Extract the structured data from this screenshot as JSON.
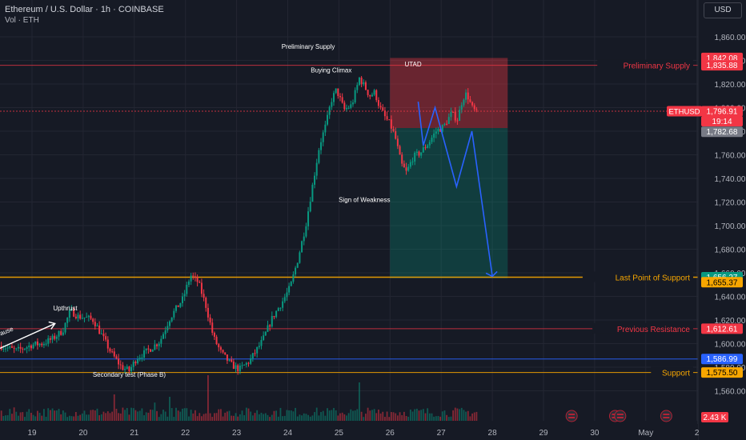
{
  "header": {
    "title": "Ethereum / U.S. Dollar · 1h · COINBASE",
    "volume_label": "Vol · ETH",
    "currency_button": "USD"
  },
  "chart_data": {
    "type": "candlestick",
    "symbol": "ETHUSD",
    "timeframe": "1h",
    "exchange": "COINBASE",
    "y_ticks": [
      1560,
      1580,
      1600,
      1620,
      1640,
      1660,
      1680,
      1700,
      1720,
      1740,
      1760,
      1780,
      1800,
      1820,
      1840,
      1860
    ],
    "y_tick_labels": [
      "1,560.00",
      "1,580.00",
      "1,600.00",
      "1,620.00",
      "1,640.00",
      "1,660.00",
      "1,680.00",
      "1,700.00",
      "1,720.00",
      "1,740.00",
      "1,760.00",
      "1,780.00",
      "1,800.00",
      "1,820.00",
      "1,840.00",
      "1,860.00"
    ],
    "ylim": [
      1542,
      1880
    ],
    "x_labels": [
      {
        "label": "19",
        "day": 19
      },
      {
        "label": "20",
        "day": 20
      },
      {
        "label": "21",
        "day": 21
      },
      {
        "label": "22",
        "day": 22
      },
      {
        "label": "23",
        "day": 23
      },
      {
        "label": "24",
        "day": 24
      },
      {
        "label": "25",
        "day": 25
      },
      {
        "label": "26",
        "day": 26
      },
      {
        "label": "27",
        "day": 27
      },
      {
        "label": "28",
        "day": 28
      },
      {
        "label": "29",
        "day": 29
      },
      {
        "label": "30",
        "day": 30
      },
      {
        "label": "May",
        "day": 31
      },
      {
        "label": "2",
        "day": 32
      }
    ],
    "price_path": [
      [
        18.4,
        1598
      ],
      [
        18.7,
        1594
      ],
      [
        19.0,
        1599
      ],
      [
        19.2,
        1600
      ],
      [
        19.4,
        1604
      ],
      [
        19.6,
        1611
      ],
      [
        19.75,
        1628
      ],
      [
        19.9,
        1623
      ],
      [
        20.05,
        1622
      ],
      [
        20.2,
        1620
      ],
      [
        20.4,
        1604
      ],
      [
        20.55,
        1592
      ],
      [
        20.75,
        1580
      ],
      [
        20.9,
        1577
      ],
      [
        21.05,
        1588
      ],
      [
        21.2,
        1592
      ],
      [
        21.5,
        1602
      ],
      [
        21.7,
        1622
      ],
      [
        21.95,
        1638
      ],
      [
        22.1,
        1658
      ],
      [
        22.25,
        1652
      ],
      [
        22.4,
        1632
      ],
      [
        22.55,
        1605
      ],
      [
        22.7,
        1592
      ],
      [
        22.9,
        1582
      ],
      [
        23.05,
        1578
      ],
      [
        23.25,
        1585
      ],
      [
        23.5,
        1602
      ],
      [
        23.7,
        1622
      ],
      [
        23.9,
        1636
      ],
      [
        24.05,
        1648
      ],
      [
        24.2,
        1672
      ],
      [
        24.35,
        1700
      ],
      [
        24.5,
        1738
      ],
      [
        24.62,
        1768
      ],
      [
        24.75,
        1786
      ],
      [
        24.85,
        1806
      ],
      [
        24.95,
        1815
      ],
      [
        25.0,
        1810
      ],
      [
        25.1,
        1798
      ],
      [
        25.25,
        1802
      ],
      [
        25.4,
        1825
      ],
      [
        25.5,
        1818
      ],
      [
        25.6,
        1810
      ],
      [
        25.7,
        1813
      ],
      [
        25.8,
        1800
      ],
      [
        25.9,
        1792
      ],
      [
        26.0,
        1786
      ],
      [
        26.1,
        1775
      ],
      [
        26.22,
        1752
      ],
      [
        26.32,
        1745
      ],
      [
        26.45,
        1758
      ],
      [
        26.6,
        1762
      ],
      [
        26.75,
        1770
      ],
      [
        26.9,
        1780
      ],
      [
        27.05,
        1784
      ],
      [
        27.2,
        1795
      ],
      [
        27.32,
        1790
      ],
      [
        27.42,
        1808
      ],
      [
        27.5,
        1812
      ],
      [
        27.6,
        1800
      ],
      [
        27.7,
        1795
      ]
    ],
    "volume_max": 100,
    "volume_label": "2.43 K",
    "annotations": [
      {
        "text": "Upthrust",
        "day": 19.65,
        "price": 1628
      },
      {
        "text": "Secondary test (Phase B)",
        "day": 20.9,
        "price": 1572
      },
      {
        "text": "Preliminary Supply",
        "day": 24.4,
        "price": 1850
      },
      {
        "text": "Buying Climax",
        "day": 24.85,
        "price": 1830
      },
      {
        "text": "Sign of Weakness",
        "day": 25.5,
        "price": 1720
      },
      {
        "text": "UTAD",
        "day": 26.45,
        "price": 1835
      },
      {
        "text": "n",
        "day": 18.1,
        "price": 1616
      },
      {
        "text": "ding Cause",
        "day": 18.35,
        "price": 1606
      }
    ],
    "horizontal_lines": [
      {
        "label": "Preliminary Supply",
        "price": 1835.88,
        "color": "#f23645"
      },
      {
        "label": "Last Point of Support",
        "price": 1656.27,
        "color": "#f7a600"
      },
      {
        "label": "Previous Resistance",
        "price": 1612.61,
        "color": "#f23645"
      },
      {
        "label": "Support",
        "price": 1575.5,
        "color": "#f7a600"
      },
      {
        "label": "",
        "price": 1586.99,
        "color": "#2962ff"
      }
    ],
    "position": {
      "start_day": 26.0,
      "end_day": 28.3,
      "stop_price": 1842.08,
      "entry_price": 1782.68,
      "target_price": 1655.37
    },
    "projection_path": [
      [
        26.55,
        1805
      ],
      [
        26.65,
        1768
      ],
      [
        26.88,
        1800
      ],
      [
        27.3,
        1733
      ],
      [
        27.6,
        1780
      ],
      [
        28.0,
        1657
      ]
    ],
    "price_tags": [
      {
        "value": "1,842.08",
        "price": 1842.08,
        "bg": "#f23645",
        "fg": "#ffffff"
      },
      {
        "value": "1,835.88",
        "price": 1835.88,
        "bg": "#f23645",
        "fg": "#ffffff"
      },
      {
        "value": "1,796.91",
        "price": 1796.91,
        "bg": "#f23645",
        "fg": "#ffffff"
      },
      {
        "value": "19:14",
        "price": 1788.5,
        "bg": "#f23645",
        "fg": "#ffffff"
      },
      {
        "value": "1,782.68",
        "price": 1779.5,
        "bg": "#787b86",
        "fg": "#ffffff"
      },
      {
        "value": "1,656.27",
        "price": 1656.27,
        "bg": "#089981",
        "fg": "#ffffff"
      },
      {
        "value": "1,655.37",
        "price": 1652.0,
        "bg": "#f7a600",
        "fg": "#000000"
      },
      {
        "value": "1,612.61",
        "price": 1612.61,
        "bg": "#f23645",
        "fg": "#ffffff"
      },
      {
        "value": "1,586.99",
        "price": 1586.99,
        "bg": "#2962ff",
        "fg": "#ffffff"
      },
      {
        "value": "1,575.50",
        "price": 1575.5,
        "bg": "#f7a600",
        "fg": "#000000"
      }
    ],
    "symbol_tag": {
      "text": "ETHUSD",
      "price": 1796.91
    },
    "current_price": 1796.91,
    "event_flags_days": [
      29.55,
      30.4,
      30.5,
      31.4
    ],
    "colors": {
      "background": "#161a25",
      "up": "#089981",
      "down": "#f23645",
      "grid": "#232632",
      "text": "#b2b5be",
      "projection": "#2962ff"
    }
  }
}
